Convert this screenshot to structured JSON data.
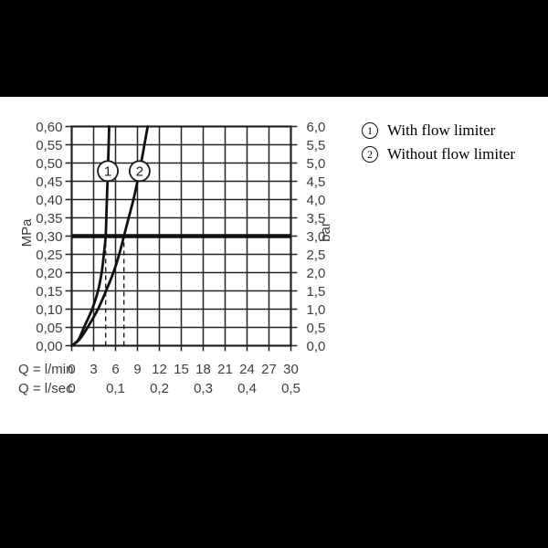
{
  "page": {
    "background": "#ffffff",
    "letterbox_color": "#000000"
  },
  "legend": {
    "items": [
      {
        "symbol": "1",
        "label": "With flow limiter"
      },
      {
        "symbol": "2",
        "label": "Without flow limiter"
      }
    ]
  },
  "chart_data": {
    "type": "line",
    "grid": true,
    "colors": {
      "grid": "#222222",
      "curve": "#111111",
      "labels": "#3e3e3e",
      "reference_line": "#111111",
      "plot_background": "#ffffff"
    },
    "x_axis": {
      "row1_label": "Q = l/min",
      "row2_label": "Q = l/sec",
      "range_lmin": [
        0,
        30
      ],
      "tick_step_lmin": 3,
      "row1_ticks": [
        "0",
        "3",
        "6",
        "9",
        "12",
        "15",
        "18",
        "21",
        "24",
        "27",
        "30"
      ],
      "row2_ticks": [
        {
          "text": "0",
          "lmin": 0
        },
        {
          "text": "0,1",
          "lmin": 6
        },
        {
          "text": "0,2",
          "lmin": 12
        },
        {
          "text": "0,3",
          "lmin": 18
        },
        {
          "text": "0,4",
          "lmin": 24
        },
        {
          "text": "0,5",
          "lmin": 30
        }
      ]
    },
    "y_axis_left": {
      "unit": "MPa",
      "range": [
        0,
        0.6
      ],
      "tick_step": 0.05,
      "ticks": [
        "0,60",
        "0,55",
        "0,50",
        "0,45",
        "0,40",
        "0,35",
        "0,30",
        "0,25",
        "0,20",
        "0,15",
        "0,10",
        "0,05",
        "0,00"
      ]
    },
    "y_axis_right": {
      "unit": "bar",
      "range": [
        0,
        6
      ],
      "tick_step": 0.5,
      "ticks": [
        "6,0",
        "5,5",
        "5,0",
        "4,5",
        "4,0",
        "3,5",
        "3,0",
        "2,5",
        "2,0",
        "1,5",
        "1,0",
        "0,5",
        "0,0"
      ]
    },
    "reference_line": {
      "mpa": 0.3,
      "bar": 3.0,
      "style": "thick"
    },
    "guide_lines": [
      {
        "q_lmin": 4.65,
        "up_to_mpa": 0.3,
        "style": "dashed"
      },
      {
        "q_lmin": 7.15,
        "up_to_mpa": 0.3,
        "style": "dashed"
      }
    ],
    "series": [
      {
        "marker": "1",
        "name": "With flow limiter",
        "marker_at_q_mpa": [
          4.95,
          0.478
        ],
        "points_q_mpa": [
          [
            0,
            0
          ],
          [
            0.9,
            0.016
          ],
          [
            1.7,
            0.051
          ],
          [
            2.8,
            0.1
          ],
          [
            3.6,
            0.15
          ],
          [
            4.1,
            0.2
          ],
          [
            4.4,
            0.25
          ],
          [
            4.65,
            0.3
          ],
          [
            4.78,
            0.375
          ],
          [
            4.9,
            0.45
          ],
          [
            5.02,
            0.525
          ],
          [
            5.13,
            0.6
          ]
        ]
      },
      {
        "marker": "2",
        "name": "Without flow limiter",
        "marker_at_q_mpa": [
          9.3,
          0.478
        ],
        "points_q_mpa": [
          [
            0,
            0
          ],
          [
            1.1,
            0.018
          ],
          [
            2.2,
            0.051
          ],
          [
            3.6,
            0.1
          ],
          [
            4.7,
            0.15
          ],
          [
            5.7,
            0.2
          ],
          [
            6.5,
            0.25
          ],
          [
            7.15,
            0.3
          ],
          [
            7.8,
            0.35
          ],
          [
            8.45,
            0.4
          ],
          [
            9.0,
            0.45
          ],
          [
            9.5,
            0.5
          ],
          [
            9.95,
            0.55
          ],
          [
            10.4,
            0.6
          ]
        ]
      }
    ]
  }
}
